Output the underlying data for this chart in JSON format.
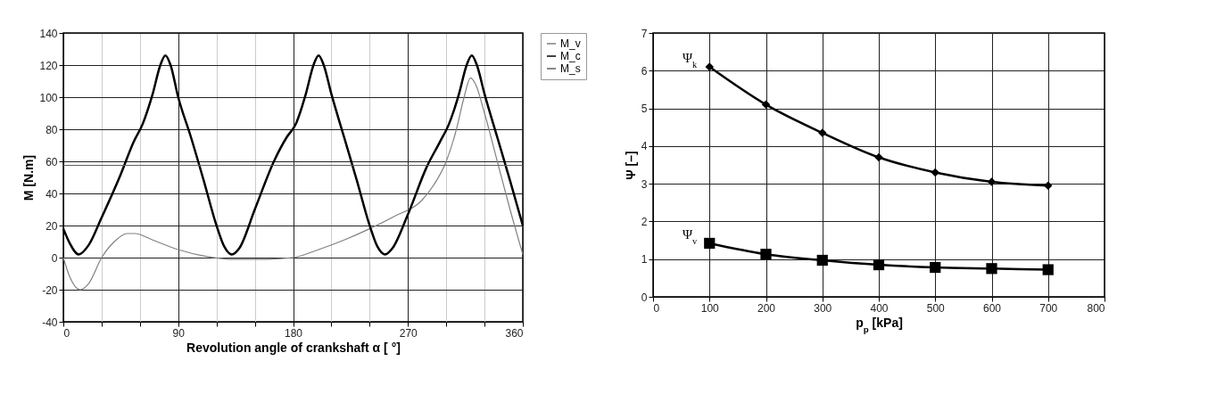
{
  "chart_data": [
    {
      "type": "line",
      "xlabel": "Revolution angle of crankshaft α [ °]",
      "ylabel": "M [N.m]",
      "xlim": [
        0,
        360
      ],
      "xticks": [
        0,
        {
          "value": 30,
          "label": null
        },
        {
          "value": 60,
          "label": null
        },
        90,
        {
          "value": 120,
          "label": null
        },
        {
          "value": 150,
          "label": null
        },
        180,
        {
          "value": 210,
          "label": null
        },
        {
          "value": 240,
          "label": null
        },
        270,
        {
          "value": 300,
          "label": null
        },
        {
          "value": 330,
          "label": null
        },
        360
      ],
      "ylim": [
        -40,
        140
      ],
      "yticks": [
        -40,
        -20,
        0,
        20,
        40,
        60,
        80,
        100,
        120,
        140
      ],
      "grid": true,
      "legend": "right",
      "marker": "none",
      "series": [
        {
          "name": "M_v",
          "color": "#808080",
          "x": [
            0,
            5,
            13,
            20,
            30,
            40,
            50,
            56,
            70,
            90,
            110,
            130,
            160,
            180,
            200,
            220,
            240,
            260,
            280,
            290,
            300,
            308,
            314,
            319,
            323,
            330,
            340,
            350,
            360
          ],
          "values": [
            0,
            -12,
            -20,
            -16,
            0,
            10,
            15,
            15,
            11,
            5,
            1,
            -1,
            -1,
            0,
            5,
            11,
            18,
            26,
            35,
            45,
            60,
            80,
            100,
            112,
            108,
            90,
            60,
            30,
            2
          ]
        },
        {
          "name": "M_c",
          "color": "#000000",
          "x": [
            0,
            5,
            12,
            20,
            30,
            45,
            55,
            62,
            70,
            76,
            80,
            84,
            90,
            100,
            110,
            120,
            126,
            132,
            138,
            150,
            165,
            175,
            182,
            190,
            196,
            200,
            204,
            210,
            220,
            230,
            240,
            246,
            252,
            258,
            270,
            285,
            295,
            302,
            310,
            316,
            320,
            324,
            330,
            340,
            350,
            360
          ],
          "values": [
            18,
            9,
            2,
            8,
            25,
            52,
            72,
            83,
            102,
            120,
            126,
            120,
            100,
            75,
            48,
            20,
            7,
            2,
            6,
            30,
            60,
            75,
            83,
            102,
            120,
            126,
            120,
            102,
            75,
            48,
            20,
            7,
            2,
            6,
            27,
            57,
            72,
            83,
            102,
            120,
            126,
            120,
            102,
            75,
            48,
            20
          ]
        },
        {
          "name": "M_s",
          "color": "#606060",
          "x": [
            0,
            360
          ],
          "values": [
            57.5,
            57.5
          ]
        }
      ]
    },
    {
      "type": "line",
      "xlabel": "p$_{p}$ [kPa]",
      "ylabel": "Ψ [–]",
      "xlim": [
        0,
        800
      ],
      "xticks": [
        0,
        100,
        200,
        300,
        400,
        500,
        600,
        700,
        800
      ],
      "ylim": [
        0,
        7
      ],
      "yticks": [
        0,
        1,
        2,
        3,
        4,
        5,
        6,
        7
      ],
      "grid": true,
      "series": [
        {
          "name": "Ψ$_{k}$",
          "color": "#000000",
          "marker": "diamond",
          "x": [
            100,
            200,
            300,
            400,
            500,
            600,
            700
          ],
          "values": [
            6.1,
            5.1,
            4.35,
            3.7,
            3.3,
            3.05,
            2.95
          ]
        },
        {
          "name": "Ψ$_{v}$",
          "color": "#000000",
          "marker": "square",
          "x": [
            100,
            200,
            300,
            400,
            500,
            600,
            700
          ],
          "values": [
            1.42,
            1.13,
            0.97,
            0.85,
            0.78,
            0.75,
            0.72
          ]
        }
      ]
    }
  ]
}
